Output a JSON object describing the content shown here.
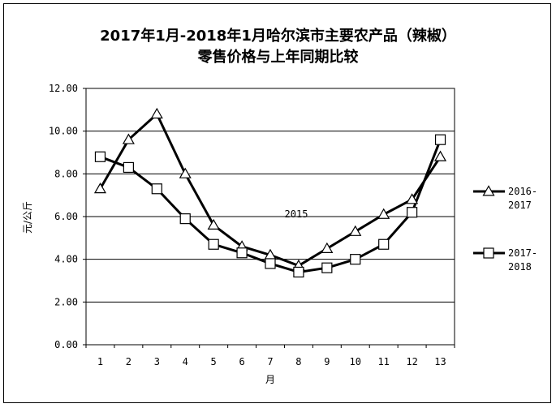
{
  "chart_data": {
    "type": "line",
    "title_line1": "2017年1月-2018年1月哈尔滨市主要农产品（辣椒）",
    "title_line2": "零售价格与上年同期比较",
    "xlabel": "月",
    "ylabel": "元/公斤",
    "x": [
      "1",
      "2",
      "3",
      "4",
      "5",
      "6",
      "7",
      "8",
      "9",
      "10",
      "11",
      "12",
      "13"
    ],
    "ylim": [
      0,
      12
    ],
    "yticks": [
      "0.00",
      "2.00",
      "4.00",
      "6.00",
      "8.00",
      "10.00",
      "12.00"
    ],
    "grid": true,
    "legend_position": "right",
    "annotation": "2015",
    "series": [
      {
        "name_line1": "2016-",
        "name_line2": "2017",
        "marker": "triangle",
        "values": [
          7.3,
          9.6,
          10.8,
          8.0,
          5.6,
          4.6,
          4.2,
          3.7,
          4.5,
          5.3,
          6.1,
          6.8,
          8.8
        ]
      },
      {
        "name_line1": "2017-",
        "name_line2": "2018",
        "marker": "square",
        "values": [
          8.8,
          8.3,
          7.3,
          5.9,
          4.7,
          4.3,
          3.8,
          3.4,
          3.6,
          4.0,
          4.7,
          6.2,
          9.6
        ]
      }
    ]
  }
}
